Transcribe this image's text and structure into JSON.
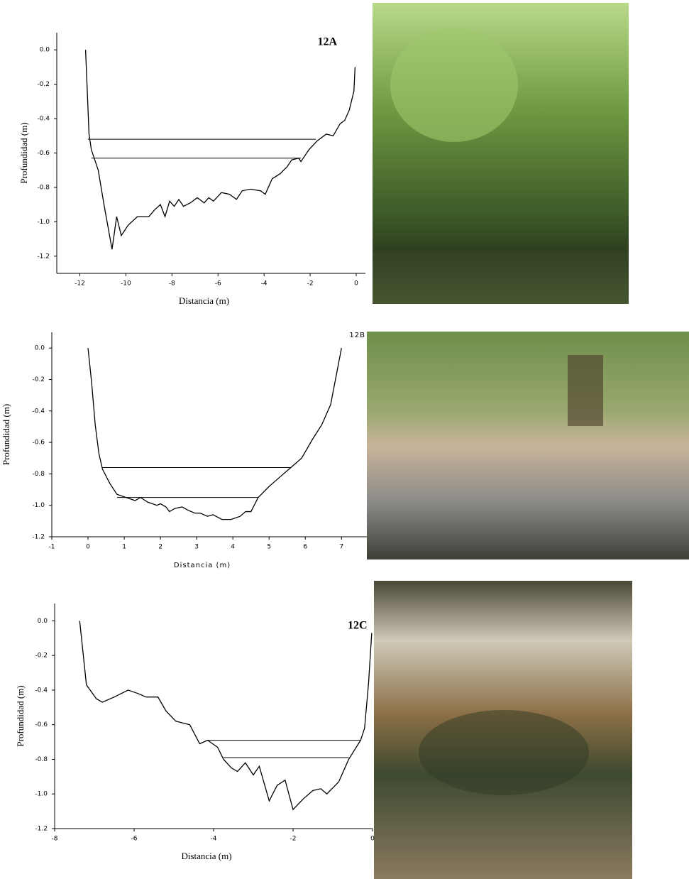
{
  "chart_data": [
    {
      "type": "line",
      "label": "12A",
      "x_label": "Distancia (m)",
      "y_label": "Profundidad (m)",
      "color": "#000000",
      "x": [
        -11.75,
        -11.66,
        -11.6,
        -11.5,
        -11.2,
        -10.95,
        -10.6,
        -10.4,
        -10.2,
        -9.9,
        -9.5,
        -9.0,
        -8.75,
        -8.5,
        -8.3,
        -8.1,
        -7.9,
        -7.7,
        -7.5,
        -7.2,
        -6.9,
        -6.6,
        -6.4,
        -6.2,
        -5.85,
        -5.5,
        -5.2,
        -4.95,
        -4.6,
        -4.15,
        -3.95,
        -3.65,
        -3.3,
        -3.0,
        -2.8,
        -2.5,
        -2.4,
        -2.05,
        -1.7,
        -1.3,
        -1.0,
        -0.7,
        -0.5,
        -0.3,
        -0.1,
        -0.05
      ],
      "values": [
        0,
        -0.29,
        -0.49,
        -0.58,
        -0.7,
        -0.9,
        -1.16,
        -0.97,
        -1.08,
        -1.02,
        -0.97,
        -0.97,
        -0.93,
        -0.9,
        -0.97,
        -0.88,
        -0.91,
        -0.87,
        -0.91,
        -0.89,
        -0.86,
        -0.89,
        -0.86,
        -0.88,
        -0.83,
        -0.84,
        -0.87,
        -0.82,
        -0.81,
        -0.82,
        -0.84,
        -0.75,
        -0.72,
        -0.68,
        -0.64,
        -0.63,
        -0.65,
        -0.58,
        -0.53,
        -0.49,
        -0.5,
        -0.43,
        -0.41,
        -0.35,
        -0.24,
        -0.1
      ],
      "levels": [
        {
          "x": [
            -11.65,
            -1.75
          ],
          "values": [
            -0.52,
            -0.52
          ]
        },
        {
          "x": [
            -11.5,
            -2.4
          ],
          "values": [
            -0.63,
            -0.63
          ]
        }
      ],
      "xlim": [
        -13,
        0.4
      ],
      "ylim": [
        -1.3,
        0.1
      ],
      "xticks": [
        -12,
        -10,
        -8,
        -6,
        -4,
        -2,
        0
      ],
      "yticks": [
        {
          "value": 0,
          "label": "0.0"
        },
        -0.2,
        -0.4,
        -0.6,
        -0.8,
        {
          "value": -1,
          "label": "-1.0"
        },
        -1.2
      ]
    },
    {
      "type": "line",
      "label": "12B",
      "x_label": "Distancia (m)",
      "y_label": "Profundidad (m)",
      "color": "#000000",
      "x": [
        0,
        0.1,
        0.2,
        0.3,
        0.4,
        0.6,
        0.8,
        1.05,
        1.3,
        1.45,
        1.65,
        1.9,
        2.0,
        2.15,
        2.25,
        2.4,
        2.6,
        2.75,
        2.95,
        3.1,
        3.3,
        3.45,
        3.7,
        3.95,
        4.2,
        4.35,
        4.5,
        4.7,
        5.0,
        5.3,
        5.6,
        5.9,
        6.2,
        6.45,
        6.7,
        6.85,
        7.0
      ],
      "values": [
        0,
        -0.22,
        -0.49,
        -0.67,
        -0.77,
        -0.86,
        -0.93,
        -0.95,
        -0.97,
        -0.95,
        -0.98,
        -1.0,
        -0.99,
        -1.01,
        -1.04,
        -1.02,
        -1.01,
        -1.03,
        -1.05,
        -1.05,
        -1.07,
        -1.06,
        -1.09,
        -1.09,
        -1.07,
        -1.04,
        -1.04,
        -0.95,
        -0.88,
        -0.82,
        -0.76,
        -0.7,
        -0.58,
        -0.49,
        -0.36,
        -0.18,
        0
      ],
      "levels": [
        {
          "x": [
            0.4,
            5.6
          ],
          "values": [
            -0.76,
            -0.76
          ]
        },
        {
          "x": [
            0.8,
            4.7
          ],
          "values": [
            -0.95,
            -0.95
          ]
        }
      ],
      "xlim": [
        -1,
        7.7
      ],
      "ylim": [
        -1.2,
        0.1
      ],
      "xticks": [
        -1,
        0,
        1,
        2,
        3,
        4,
        5,
        6,
        7
      ],
      "yticks": [
        {
          "value": 0,
          "label": "0.0"
        },
        -0.2,
        -0.4,
        -0.6,
        -0.8,
        {
          "value": -1,
          "label": "-1.0"
        },
        -1.2
      ]
    },
    {
      "type": "line",
      "label": "12C",
      "x_label": "Distancia (m)",
      "y_label": "Profundidad (m)",
      "color": "#000000",
      "x": [
        -7.37,
        -7.2,
        -6.95,
        -6.8,
        -6.5,
        -6.15,
        -5.9,
        -5.7,
        -5.55,
        -5.4,
        -5.2,
        -4.95,
        -4.6,
        -4.35,
        -4.15,
        -3.9,
        -3.75,
        -3.55,
        -3.4,
        -3.2,
        -3.0,
        -2.85,
        -2.6,
        -2.4,
        -2.2,
        -2.0,
        -1.75,
        -1.5,
        -1.3,
        -1.15,
        -0.85,
        -0.6,
        -0.3,
        -0.2,
        -0.1,
        -0.02
      ],
      "values": [
        0,
        -0.37,
        -0.45,
        -0.47,
        -0.44,
        -0.4,
        -0.42,
        -0.44,
        -0.44,
        -0.44,
        -0.52,
        -0.58,
        -0.6,
        -0.71,
        -0.69,
        -0.73,
        -0.8,
        -0.85,
        -0.87,
        -0.82,
        -0.89,
        -0.84,
        -1.04,
        -0.95,
        -0.92,
        -1.09,
        -1.03,
        -0.98,
        -0.97,
        -1.0,
        -0.93,
        -0.8,
        -0.69,
        -0.62,
        -0.36,
        -0.07
      ],
      "levels": [
        {
          "x": [
            -4.15,
            -0.3
          ],
          "values": [
            -0.69,
            -0.69
          ]
        },
        {
          "x": [
            -3.75,
            -0.6
          ],
          "values": [
            -0.79,
            -0.79
          ]
        }
      ],
      "xlim": [
        -8,
        0
      ],
      "ylim": [
        -1.2,
        0.1
      ],
      "xticks": [
        -8,
        -6,
        -4,
        -2,
        0
      ],
      "yticks": [
        {
          "value": 0,
          "label": "0.0"
        },
        -0.2,
        -0.4,
        -0.6,
        -0.8,
        {
          "value": -1,
          "label": "-1.0"
        },
        -1.2
      ]
    }
  ]
}
